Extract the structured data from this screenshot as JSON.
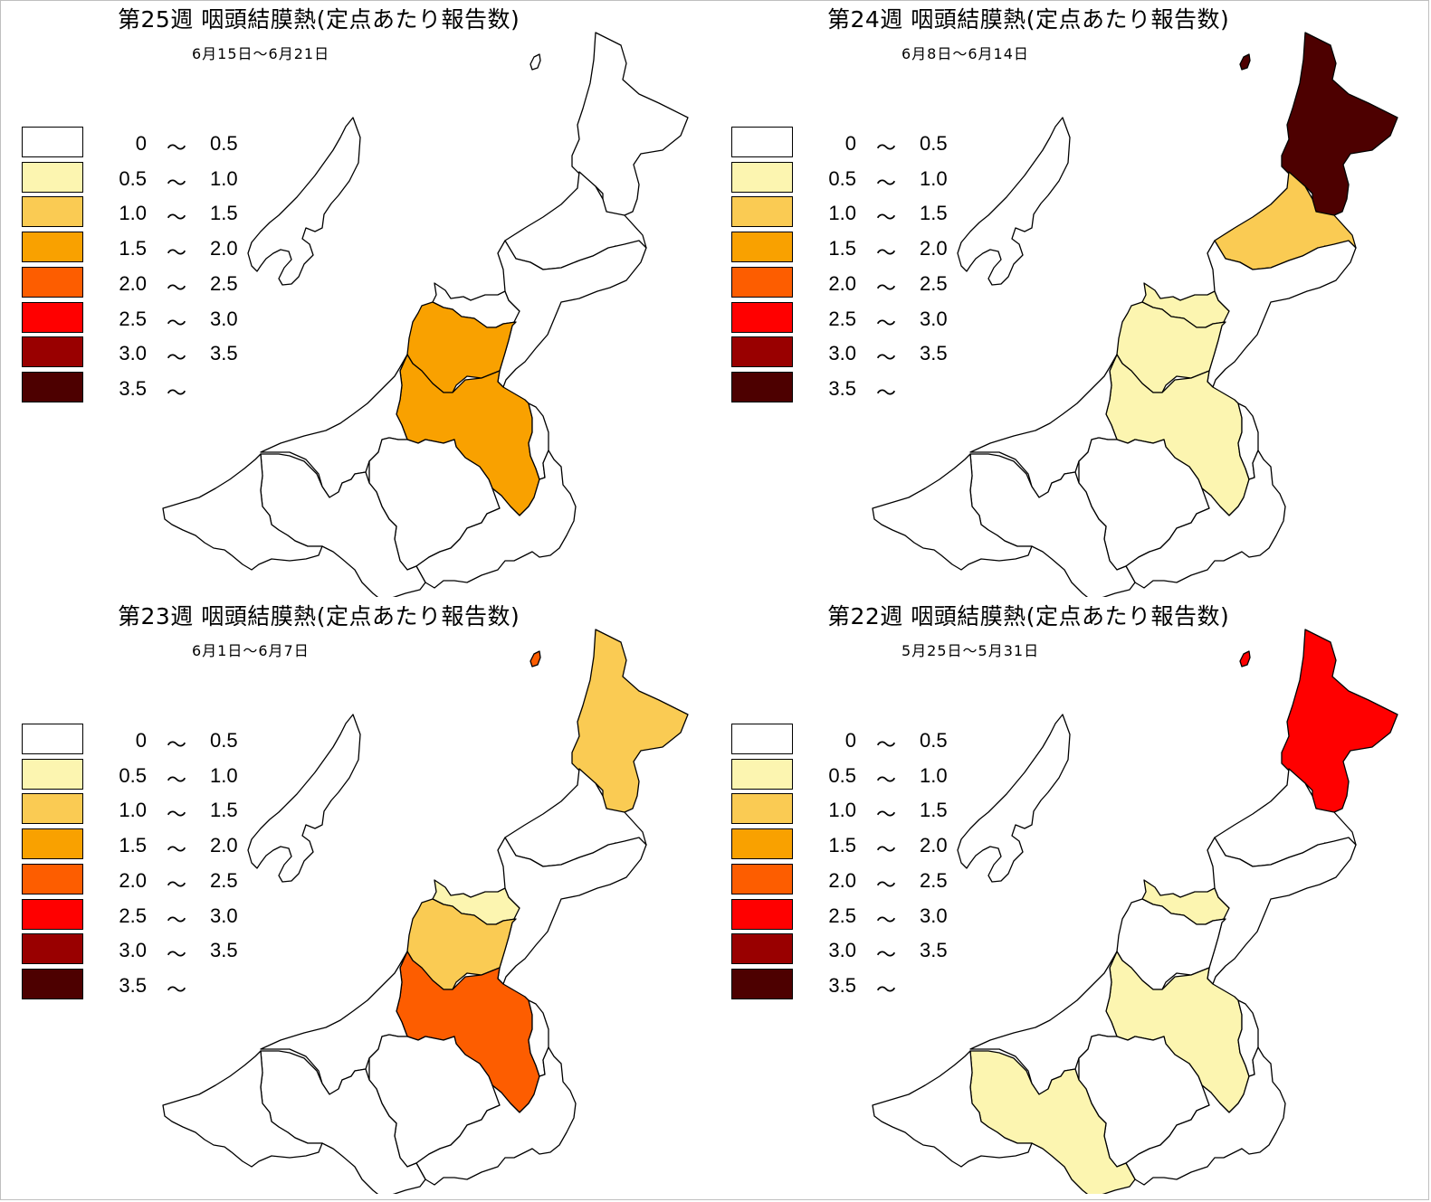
{
  "panels": [
    {
      "title": "第25週 咽頭結膜熱(定点あたり報告数)",
      "dates": "6月15日〜6月21日",
      "region_levels": {
        "sado": 0,
        "iwafune": 0,
        "shibata": 0,
        "niigata": 0,
        "niitsu": 0,
        "sanjo": 3,
        "nagaoka": 3,
        "uonuma": 0,
        "minamiuonuma": 0,
        "tokamachi": 0,
        "kashiwazaki": 0,
        "joetsu": 0,
        "itoigawa": 0,
        "awashima": 0
      }
    },
    {
      "title": "第24週 咽頭結膜熱(定点あたり報告数)",
      "dates": "6月8日〜6月14日",
      "region_levels": {
        "sado": 0,
        "iwafune": 7,
        "shibata": 2,
        "niigata": 1,
        "niitsu": 0,
        "sanjo": 1,
        "nagaoka": 1,
        "uonuma": 0,
        "minamiuonuma": 0,
        "tokamachi": 0,
        "kashiwazaki": 0,
        "joetsu": 0,
        "itoigawa": 0,
        "awashima": 7
      }
    },
    {
      "title": "第23週 咽頭結膜熱(定点あたり報告数)",
      "dates": "6月1日〜6月7日",
      "region_levels": {
        "sado": 0,
        "iwafune": 2,
        "shibata": 0,
        "niigata": 1,
        "niitsu": 0,
        "sanjo": 2,
        "nagaoka": 4,
        "uonuma": 0,
        "minamiuonuma": 0,
        "tokamachi": 0,
        "kashiwazaki": 0,
        "joetsu": 0,
        "itoigawa": 0,
        "awashima": 4
      }
    },
    {
      "title": "第22週 咽頭結膜熱(定点あたり報告数)",
      "dates": "5月25日〜5月31日",
      "region_levels": {
        "sado": 0,
        "iwafune": 5,
        "shibata": 0,
        "niigata": 1,
        "niitsu": 0,
        "sanjo": 0,
        "nagaoka": 1,
        "uonuma": 0,
        "minamiuonuma": 0,
        "tokamachi": 0,
        "kashiwazaki": 0,
        "joetsu": 1,
        "itoigawa": 0,
        "awashima": 5
      }
    }
  ],
  "legend": {
    "classes": [
      {
        "low": "0",
        "sep": "〜",
        "high": "0.5",
        "color": "#ffffff"
      },
      {
        "low": "0.5",
        "sep": "〜",
        "high": "1.0",
        "color": "#fcf5b0"
      },
      {
        "low": "1.0",
        "sep": "〜",
        "high": "1.5",
        "color": "#facb53"
      },
      {
        "low": "1.5",
        "sep": "〜",
        "high": "2.0",
        "color": "#f9a100"
      },
      {
        "low": "2.0",
        "sep": "〜",
        "high": "2.5",
        "color": "#fd5d00"
      },
      {
        "low": "2.5",
        "sep": "〜",
        "high": "3.0",
        "color": "#ff0000"
      },
      {
        "low": "3.0",
        "sep": "〜",
        "high": "3.5",
        "color": "#990000"
      },
      {
        "low": "3.5",
        "sep": "〜",
        "high": "",
        "color": "#4d0000"
      }
    ]
  }
}
